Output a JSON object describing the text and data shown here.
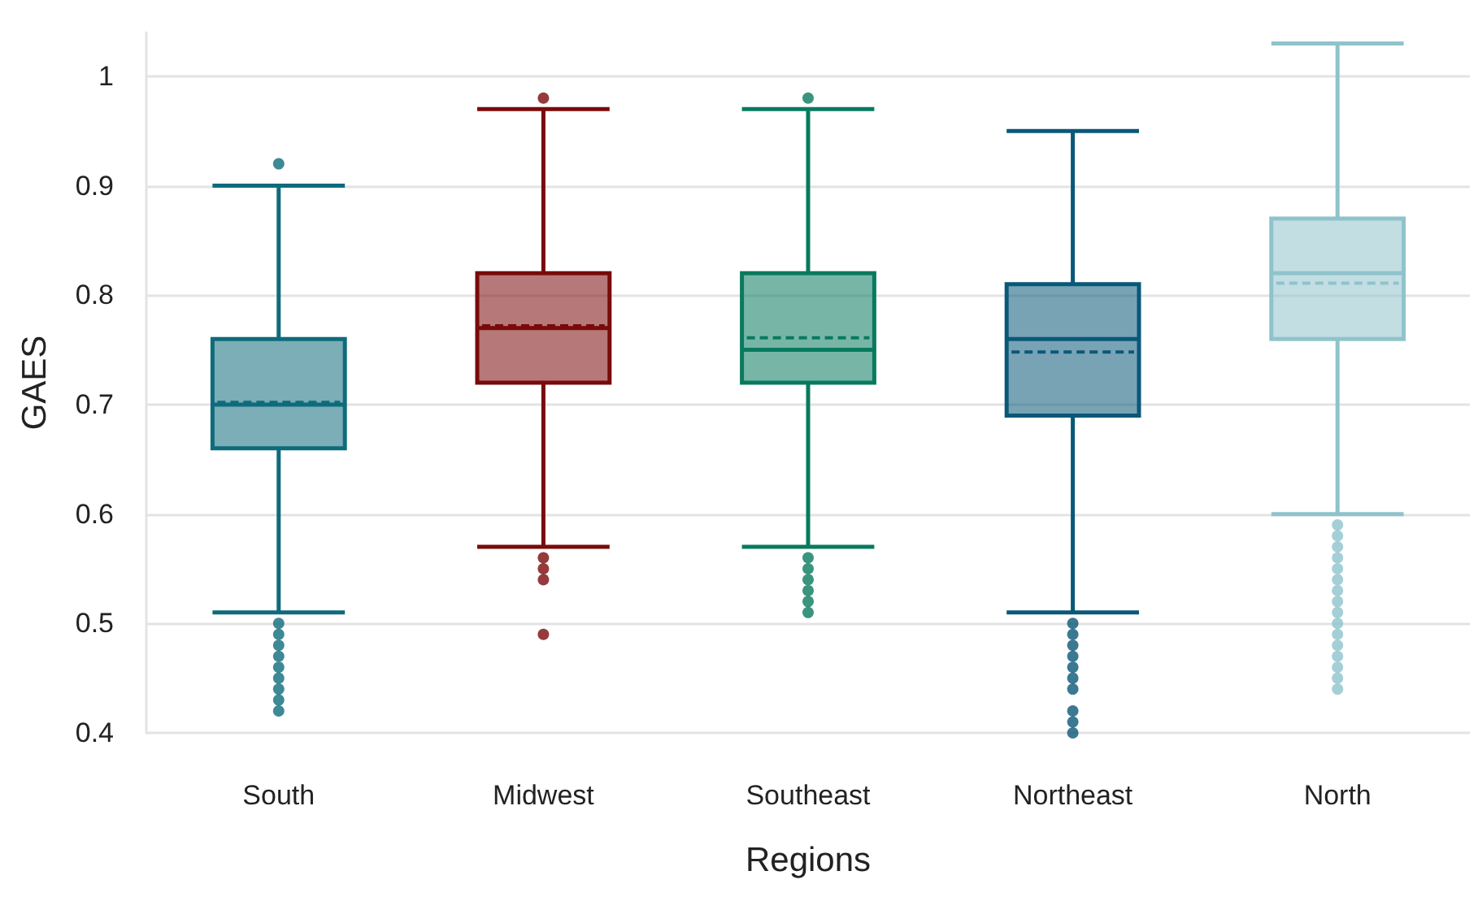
{
  "chart_data": {
    "type": "box",
    "xlabel": "Regions",
    "ylabel": "GAES",
    "categories": [
      "South",
      "Midwest",
      "Southeast",
      "Northeast",
      "North"
    ],
    "colors": [
      "#0e6b7c",
      "#7a0a0a",
      "#087a5e",
      "#0a5878",
      "#8fc3cc"
    ],
    "boxes": [
      {
        "low": 0.51,
        "q1": 0.66,
        "median": 0.7,
        "q3": 0.76,
        "high": 0.9,
        "mean": 0.702,
        "outliers": [
          0.92,
          0.5,
          0.49,
          0.48,
          0.47,
          0.46,
          0.45,
          0.44,
          0.43,
          0.42
        ]
      },
      {
        "low": 0.57,
        "q1": 0.72,
        "median": 0.77,
        "q3": 0.82,
        "high": 0.97,
        "mean": 0.772,
        "outliers": [
          0.98,
          0.56,
          0.55,
          0.54,
          0.49
        ]
      },
      {
        "low": 0.57,
        "q1": 0.72,
        "median": 0.75,
        "q3": 0.82,
        "high": 0.97,
        "mean": 0.761,
        "outliers": [
          0.98,
          0.56,
          0.55,
          0.54,
          0.53,
          0.52,
          0.51
        ]
      },
      {
        "low": 0.51,
        "q1": 0.69,
        "median": 0.76,
        "q3": 0.81,
        "high": 0.95,
        "mean": 0.748,
        "outliers": [
          0.5,
          0.49,
          0.48,
          0.47,
          0.46,
          0.45,
          0.44,
          0.42,
          0.41,
          0.4
        ]
      },
      {
        "low": 0.6,
        "q1": 0.76,
        "median": 0.82,
        "q3": 0.87,
        "high": 1.03,
        "mean": 0.811,
        "outliers": [
          0.59,
          0.58,
          0.57,
          0.56,
          0.55,
          0.54,
          0.53,
          0.52,
          0.51,
          0.5,
          0.49,
          0.48,
          0.47,
          0.46,
          0.45,
          0.44
        ]
      }
    ],
    "ylim": [
      0.4,
      1.04
    ],
    "yticks": [
      0.4,
      0.5,
      0.6,
      0.7,
      0.8,
      0.9,
      1
    ],
    "grid": "y"
  }
}
